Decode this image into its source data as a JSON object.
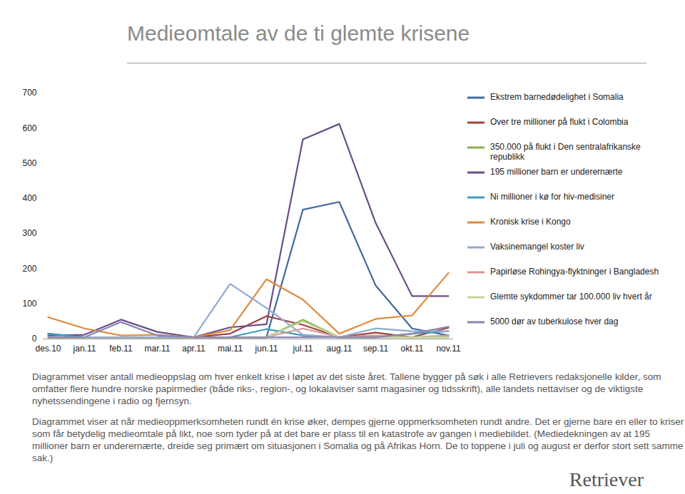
{
  "chart_data": {
    "type": "line",
    "title": "Medieomtale av de ti glemte krisene",
    "categories": [
      "des.10",
      "jan.11",
      "feb.11",
      "mar.11",
      "apr.11",
      "mai.11",
      "jun.11",
      "jul.11",
      "aug.11",
      "sep.11",
      "okt.11",
      "nov.11"
    ],
    "series": [
      {
        "name": "Ekstrem barnedødelighet i Somalia",
        "color": "#3f6b9c",
        "values": [
          15,
          5,
          5,
          5,
          5,
          5,
          5,
          368,
          390,
          152,
          30,
          10
        ]
      },
      {
        "name": "Over tre millioner på flukt i Colombia",
        "color": "#a2403d",
        "values": [
          5,
          5,
          5,
          5,
          5,
          15,
          65,
          40,
          5,
          18,
          5,
          32
        ]
      },
      {
        "name": "350.000 på flukt i Den sentralafrikanske republikk",
        "color": "#8db04b",
        "values": [
          0,
          0,
          0,
          0,
          0,
          0,
          5,
          55,
          5,
          5,
          5,
          5
        ]
      },
      {
        "name": "195 millioner barn er underernærte",
        "color": "#6b4d8c",
        "values": [
          10,
          12,
          55,
          20,
          5,
          33,
          42,
          568,
          612,
          330,
          122,
          122
        ]
      },
      {
        "name": "Ni millioner i kø for hiv-medisiner",
        "color": "#3f9bbf",
        "values": [
          15,
          5,
          5,
          5,
          5,
          5,
          28,
          10,
          5,
          5,
          15,
          22
        ]
      },
      {
        "name": "Kronisk krise i Kongo",
        "color": "#e08a3c",
        "values": [
          62,
          30,
          10,
          12,
          5,
          25,
          170,
          112,
          15,
          57,
          67,
          188
        ]
      },
      {
        "name": "Vaksinemangel koster liv",
        "color": "#93a9cf",
        "values": [
          5,
          5,
          5,
          5,
          5,
          157,
          88,
          12,
          5,
          30,
          22,
          22
        ]
      },
      {
        "name": "Papirløse Rohingya-flyktninger i Bangladesh",
        "color": "#d99694",
        "values": [
          0,
          0,
          0,
          0,
          0,
          0,
          5,
          30,
          5,
          10,
          5,
          10
        ]
      },
      {
        "name": "Glemte sykdommer tar 100.000 liv hvert år",
        "color": "#c3d69b",
        "values": [
          0,
          0,
          0,
          0,
          0,
          0,
          5,
          50,
          5,
          5,
          5,
          5
        ]
      },
      {
        "name": "5000 dør av tuberkulose hver dag",
        "color": "#8e86ae",
        "values": [
          5,
          5,
          48,
          10,
          5,
          5,
          5,
          5,
          5,
          5,
          15,
          35
        ]
      }
    ],
    "ylim": [
      0,
      700
    ],
    "yticks": [
      0,
      100,
      200,
      300,
      400,
      500,
      600,
      700
    ],
    "grid": false,
    "legend": "right"
  },
  "caption": [
    "Diagrammet viser antall medieoppslag om hver enkelt krise i løpet av det siste året. Tallene bygger på søk i alle Retrievers redaksjonelle kilder, som omfatter flere hundre norske papirmedier (både riks-, region-, og lokalaviser samt magasiner og tidsskrift), alle landets nettaviser og de viktigste nyhetssendingene i radio og fjernsyn.",
    "Diagrammet viser at når medieoppmerksomheten rundt én krise øker, dempes gjerne oppmerksomheten rundt andre. Det er gjerne bare en eller to kriser som får betydelig medieomtale på likt, noe som tyder på at det bare er plass til en katastrofe av gangen i mediebildet. (Mediedekningen av at 195 millioner barn er underernærte, dreide seg primært om situasjonen i Somalia og på Afrikas Horn. De to toppene i juli og august er derfor stort sett samme sak.)"
  ],
  "logo": "Retriever"
}
